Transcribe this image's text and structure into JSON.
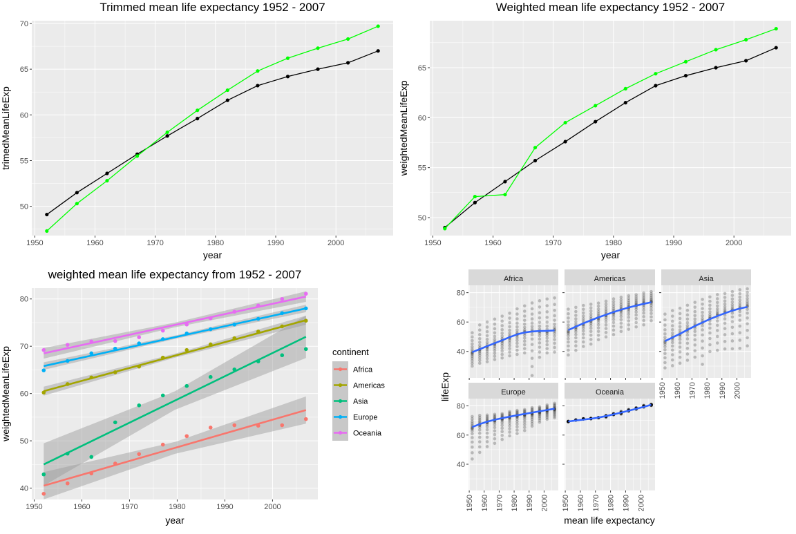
{
  "chart_data": [
    {
      "id": "trimmed",
      "type": "line",
      "title": "Trimmed mean life expectancy 1952 - 2007",
      "xlabel": "year",
      "ylabel": "trimedMeanLifeExp",
      "xlim": [
        1949.5,
        2009.5
      ],
      "ylim": [
        46.8,
        70.3
      ],
      "xticks": [
        1950,
        1960,
        1970,
        1980,
        1990,
        2000
      ],
      "yticks": [
        50,
        55,
        60,
        65,
        70
      ],
      "x": [
        1952,
        1957,
        1962,
        1967,
        1972,
        1977,
        1982,
        1987,
        1992,
        1997,
        2002,
        2007
      ],
      "series": [
        {
          "color": "#000000",
          "values": [
            49.1,
            51.5,
            53.6,
            55.7,
            57.7,
            59.6,
            61.6,
            63.2,
            64.2,
            65.0,
            65.7,
            67.0
          ]
        },
        {
          "color": "#00ff00",
          "values": [
            47.3,
            50.3,
            52.8,
            55.5,
            58.1,
            60.5,
            62.7,
            64.8,
            66.2,
            67.3,
            68.3,
            69.7
          ]
        }
      ]
    },
    {
      "id": "weighted",
      "type": "line",
      "title": "Weighted mean life expectancy 1952 - 2007",
      "xlabel": "year",
      "ylabel": "weightedMeanLifeExp",
      "xlim": [
        1949.5,
        2009.5
      ],
      "ylim": [
        48.2,
        69.7
      ],
      "xticks": [
        1950,
        1960,
        1970,
        1980,
        1990,
        2000
      ],
      "yticks": [
        50,
        55,
        60,
        65
      ],
      "x": [
        1952,
        1957,
        1962,
        1967,
        1972,
        1977,
        1982,
        1987,
        1992,
        1997,
        2002,
        2007
      ],
      "series": [
        {
          "color": "#000000",
          "values": [
            49.0,
            51.5,
            53.6,
            55.7,
            57.6,
            59.6,
            61.5,
            63.2,
            64.2,
            65.0,
            65.7,
            67.0
          ]
        },
        {
          "color": "#00ff00",
          "values": [
            48.9,
            52.1,
            52.3,
            57.0,
            59.5,
            61.2,
            62.9,
            64.4,
            65.6,
            66.8,
            67.8,
            68.9
          ]
        }
      ]
    },
    {
      "id": "bycontinent",
      "type": "scatter",
      "title": "weighted mean life expectancy from 1952 - 2007",
      "xlabel": "year",
      "ylabel": "weightedMeanLifeExp",
      "xlim": [
        1949.5,
        2009.5
      ],
      "ylim": [
        37.6,
        82.3
      ],
      "xticks": [
        1950,
        1960,
        1970,
        1980,
        1990,
        2000
      ],
      "yticks": [
        40,
        50,
        60,
        70,
        80
      ],
      "legend_title": "continent",
      "legend_position": "right",
      "x": [
        1952,
        1957,
        1962,
        1967,
        1972,
        1977,
        1982,
        1987,
        1992,
        1997,
        2002,
        2007
      ],
      "series": [
        {
          "name": "Africa",
          "color": "#F8766D",
          "values": [
            38.8,
            41.0,
            43.1,
            45.2,
            47.2,
            49.2,
            51.0,
            52.8,
            53.3,
            53.2,
            53.3,
            54.6
          ],
          "fit": [
            40.5,
            56.5
          ],
          "band": [
            1.8,
            1.8
          ]
        },
        {
          "name": "Americas",
          "color": "#A3A500",
          "values": [
            60.2,
            62.0,
            63.4,
            64.5,
            65.7,
            67.6,
            69.2,
            70.4,
            71.7,
            73.1,
            74.2,
            75.4
          ],
          "fit": [
            60.5,
            75.5
          ],
          "band": [
            0.6,
            0.6
          ]
        },
        {
          "name": "Asia",
          "color": "#00BF7D",
          "values": [
            42.9,
            47.3,
            46.6,
            53.9,
            57.5,
            59.6,
            61.6,
            63.5,
            65.1,
            66.8,
            68.1,
            69.4
          ],
          "fit": [
            45.0,
            72.0
          ],
          "band": [
            2.8,
            2.8
          ]
        },
        {
          "name": "Europe",
          "color": "#00B0F6",
          "values": [
            64.9,
            66.9,
            68.5,
            69.5,
            70.6,
            71.5,
            72.7,
            73.6,
            74.6,
            75.8,
            77.0,
            78.0
          ],
          "fit": [
            65.8,
            78.0
          ],
          "band": [
            0.5,
            0.5
          ]
        },
        {
          "name": "Oceania",
          "color": "#E76BF3",
          "values": [
            69.2,
            70.3,
            71.0,
            71.1,
            71.9,
            73.3,
            74.6,
            75.9,
            77.3,
            78.6,
            80.0,
            81.1
          ],
          "fit": [
            68.5,
            80.5
          ],
          "band": [
            0.7,
            0.7
          ]
        }
      ]
    },
    {
      "id": "facets",
      "type": "scatter",
      "xlabel": "mean life expectancy",
      "ylabel": "lifeExp",
      "xlim": [
        1949.5,
        2009.5
      ],
      "ylim": [
        22,
        85
      ],
      "xticks": [
        1950,
        1960,
        1970,
        1980,
        1990,
        2000
      ],
      "yticks": [
        40,
        60,
        80
      ],
      "x": [
        1952,
        1957,
        1962,
        1967,
        1972,
        1977,
        1982,
        1987,
        1992,
        1997,
        2002,
        2007
      ],
      "panels": [
        {
          "name": "Africa",
          "smooth": [
            39.5,
            41.5,
            43.6,
            45.6,
            47.6,
            49.7,
            51.6,
            52.9,
            53.6,
            53.9,
            54.0,
            54.3
          ],
          "low": [
            30.0,
            32.0,
            33.0,
            34.5,
            35.5,
            37.0,
            38.0,
            39.0,
            23.6,
            36.0,
            39.0,
            39.6
          ],
          "high": [
            52.7,
            58.0,
            60.0,
            62.0,
            64.0,
            66.0,
            69.0,
            71.0,
            73.0,
            74.5,
            75.7,
            76.4
          ],
          "center": [
            39.1,
            41.3,
            43.3,
            45.3,
            47.5,
            49.6,
            51.6,
            53.3,
            53.6,
            53.6,
            53.3,
            54.8
          ]
        },
        {
          "name": "Americas",
          "smooth": [
            54.5,
            56.9,
            59.1,
            61.2,
            63.2,
            65.0,
            66.8,
            68.4,
            69.9,
            71.2,
            72.4,
            73.5
          ],
          "low": [
            37.6,
            40.7,
            43.4,
            45.0,
            48.0,
            49.9,
            51.5,
            53.6,
            55.1,
            56.7,
            58.1,
            60.9
          ],
          "high": [
            68.8,
            70.0,
            71.3,
            72.1,
            72.9,
            74.2,
            75.8,
            76.9,
            77.9,
            78.6,
            79.8,
            80.7
          ],
          "center": [
            53.3,
            56.0,
            58.4,
            60.4,
            62.4,
            64.4,
            66.2,
            68.1,
            69.6,
            71.2,
            72.4,
            73.6
          ]
        },
        {
          "name": "Asia",
          "smooth": [
            47.0,
            49.5,
            52.0,
            54.7,
            57.3,
            59.7,
            62.0,
            64.1,
            66.0,
            67.8,
            69.2,
            70.3
          ],
          "low": [
            28.8,
            30.3,
            32.0,
            34.0,
            36.1,
            31.2,
            39.9,
            40.8,
            41.7,
            41.8,
            42.1,
            43.8
          ],
          "high": [
            65.4,
            67.8,
            69.4,
            71.4,
            73.4,
            75.4,
            77.1,
            78.7,
            79.4,
            80.7,
            82.0,
            82.6
          ],
          "center": [
            46.3,
            49.3,
            51.6,
            54.7,
            57.3,
            59.6,
            62.6,
            64.9,
            66.5,
            68.0,
            69.2,
            70.7
          ]
        },
        {
          "name": "Europe",
          "smooth": [
            65.5,
            67.5,
            69.2,
            70.5,
            71.6,
            72.6,
            73.6,
            74.5,
            75.4,
            76.3,
            77.2,
            78.1
          ],
          "low": [
            43.6,
            48.1,
            52.1,
            54.3,
            57.0,
            59.5,
            61.0,
            63.1,
            66.1,
            68.8,
            70.8,
            71.8
          ],
          "high": [
            72.7,
            73.5,
            73.7,
            74.2,
            74.7,
            76.1,
            76.9,
            77.5,
            78.8,
            79.4,
            80.6,
            81.8
          ],
          "center": [
            64.4,
            66.7,
            68.5,
            69.7,
            70.8,
            71.9,
            72.8,
            73.6,
            74.4,
            75.5,
            76.7,
            77.6
          ]
        },
        {
          "name": "Oceania",
          "smooth": [
            69.3,
            70.0,
            70.6,
            71.2,
            72.0,
            73.0,
            74.2,
            75.4,
            76.7,
            78.0,
            79.3,
            80.8
          ],
          "low": [
            69.1,
            70.3,
            70.9,
            71.1,
            71.9,
            72.2,
            73.8,
            74.3,
            76.3,
            77.6,
            79.1,
            80.2
          ],
          "high": [
            69.4,
            70.3,
            71.2,
            71.5,
            71.9,
            73.5,
            74.8,
            76.3,
            77.6,
            78.8,
            80.4,
            81.2
          ],
          "center": [
            69.3,
            70.3,
            71.1,
            71.3,
            71.9,
            72.9,
            74.3,
            75.3,
            76.9,
            78.2,
            79.7,
            80.7
          ]
        }
      ]
    }
  ]
}
